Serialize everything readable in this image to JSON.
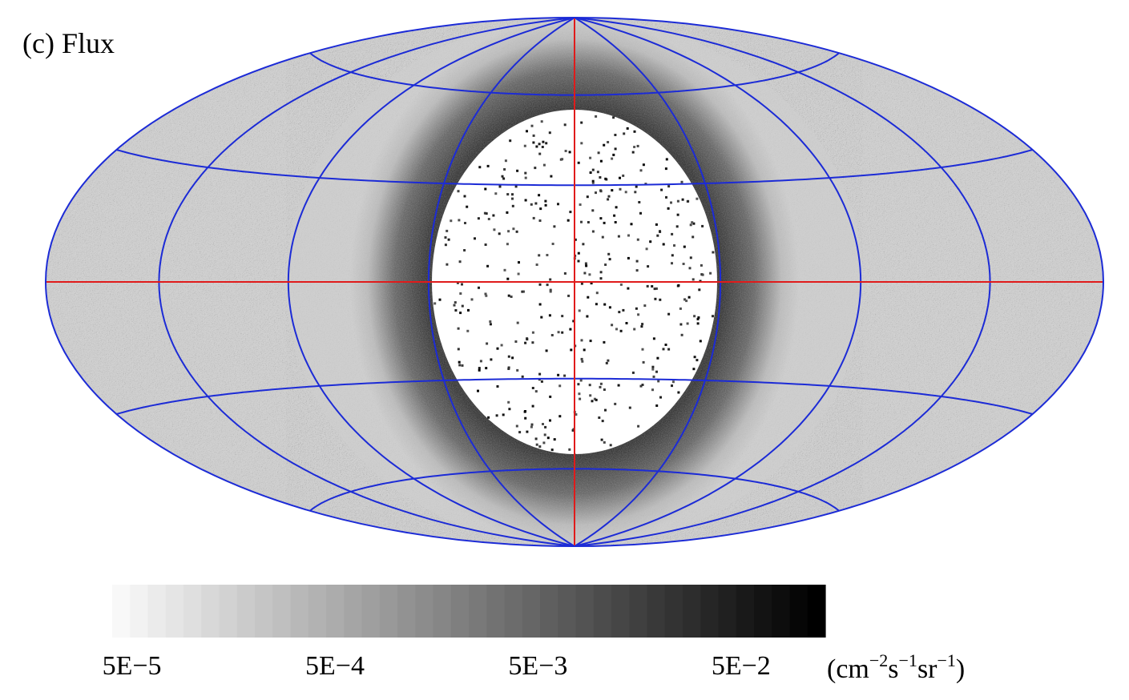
{
  "panel_label": "(c) Flux",
  "chart_data": {
    "type": "heatmap",
    "projection": "hammer-aitoff (all-sky)",
    "quantity": "Flux",
    "colorbar": {
      "scale": "log",
      "range": [
        4e-05,
        0.13
      ],
      "tick_values": [
        5e-05,
        0.0005,
        0.005,
        0.05
      ],
      "tick_labels": [
        "5E−5",
        "5E−4",
        "5E−3",
        "5E−2"
      ],
      "unit_parts": [
        "(cm",
        "−2",
        "s",
        "−1",
        "sr",
        "−1",
        ")"
      ],
      "colormap": "white-to-black grayscale"
    },
    "grid": {
      "shown": true,
      "meridian_step_deg": 45,
      "parallel_step_deg": 30,
      "grid_color": "#1c2bd6",
      "center_lines_color": "#e01b1b"
    },
    "structure": {
      "center_region_white_radius_deg": 45,
      "dark_ring_inner_deg": 45,
      "dark_ring_outer_deg": 90,
      "outer_region_level": "light gray speckle"
    }
  }
}
